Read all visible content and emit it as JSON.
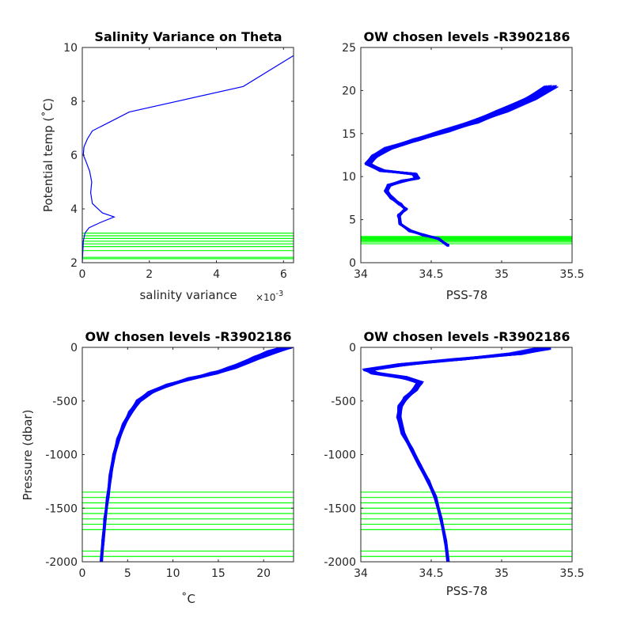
{
  "colors": {
    "profile": "#0000ff",
    "level": "#00ff00",
    "axis": "#262626"
  },
  "chart_data": [
    {
      "id": "p1",
      "type": "line",
      "title": "Salinity Variance on Theta",
      "xlabel": "salinity variance",
      "x_exponent": "×10",
      "x_exponent_power": "-3",
      "ylabel": "Potential temp (˚C)",
      "xlim": [
        0,
        6.3
      ],
      "ylim": [
        2,
        10
      ],
      "xticks": [
        0,
        2,
        4,
        6
      ],
      "yticks": [
        2,
        4,
        6,
        8,
        10
      ],
      "series": [
        {
          "x": [
            0.0,
            0.03,
            0.08,
            0.2,
            0.55,
            0.95,
            0.6,
            0.3,
            0.25,
            0.28,
            0.22,
            0.1,
            0.03,
            0.05,
            0.15,
            0.3,
            1.4,
            4.8,
            6.3
          ],
          "y": [
            2.0,
            2.8,
            3.1,
            3.3,
            3.5,
            3.7,
            3.85,
            4.2,
            4.6,
            5.0,
            5.4,
            5.8,
            6.0,
            6.3,
            6.6,
            6.9,
            7.6,
            8.55,
            9.7
          ]
        }
      ],
      "levels": [
        2.15,
        2.2,
        2.45,
        2.6,
        2.7,
        2.8,
        2.9,
        3.0,
        3.1
      ]
    },
    {
      "id": "p2",
      "type": "line",
      "title": "OW chosen levels -R3902186",
      "xlabel": "PSS-78",
      "ylabel": "",
      "xlim": [
        34,
        35.5
      ],
      "ylim": [
        0,
        25
      ],
      "xticks": [
        34,
        34.5,
        35,
        35.5
      ],
      "xtick_labels": [
        "34",
        "34.5",
        "35",
        "35.5"
      ],
      "yticks": [
        0,
        5,
        10,
        15,
        20,
        25
      ],
      "profile": {
        "x": [
          34.62,
          34.55,
          34.45,
          34.35,
          34.28,
          34.27,
          34.32,
          34.28,
          34.22,
          34.18,
          34.2,
          34.3,
          34.4,
          34.38,
          34.15,
          34.05,
          34.1,
          34.2,
          34.4,
          34.6,
          34.8,
          35.0,
          35.2,
          35.35
        ],
        "y": [
          2.0,
          2.8,
          3.2,
          3.7,
          4.5,
          5.5,
          6.2,
          6.8,
          7.5,
          8.3,
          9.0,
          9.5,
          9.8,
          10.3,
          10.7,
          11.5,
          12.4,
          13.3,
          14.3,
          15.3,
          16.3,
          17.6,
          19.0,
          20.5
        ]
      },
      "profile_count": 90,
      "levels": [
        2.2,
        2.4,
        2.55,
        2.65,
        2.75,
        2.85,
        2.95,
        3.05
      ]
    },
    {
      "id": "p3",
      "type": "line",
      "title": "OW chosen levels -R3902186",
      "xlabel": "˚C",
      "ylabel": "Pressure (dbar)",
      "xlim": [
        0,
        23.3
      ],
      "ylim": [
        -2000,
        0
      ],
      "xticks": [
        0,
        5,
        10,
        15,
        20
      ],
      "yticks": [
        -2000,
        -1500,
        -1000,
        -500,
        0
      ],
      "profile": {
        "x": [
          2.1,
          2.3,
          2.5,
          2.8,
          3.1,
          3.5,
          4.0,
          4.6,
          5.3,
          6.2,
          7.5,
          9.5,
          12.0,
          14.5,
          16.5,
          18.0,
          19.5,
          21.0,
          22.5
        ],
        "y": [
          -2000,
          -1800,
          -1600,
          -1400,
          -1200,
          -1000,
          -850,
          -720,
          -600,
          -500,
          -420,
          -350,
          -290,
          -240,
          -190,
          -140,
          -90,
          -40,
          0
        ]
      },
      "profile_count": 60,
      "levels": [
        -1350,
        -1400,
        -1450,
        -1500,
        -1550,
        -1600,
        -1650,
        -1700,
        -1900,
        -1950
      ]
    },
    {
      "id": "p4",
      "type": "line",
      "title": "OW chosen levels -R3902186",
      "xlabel": "PSS-78",
      "ylabel": "",
      "xlim": [
        34,
        35.5
      ],
      "ylim": [
        -2000,
        0
      ],
      "xticks": [
        34,
        34.5,
        35,
        35.5
      ],
      "xtick_labels": [
        "34",
        "34.5",
        "35",
        "35.5"
      ],
      "yticks": [
        -2000,
        -1500,
        -1000,
        -500,
        0
      ],
      "profile": {
        "x": [
          34.62,
          34.6,
          34.57,
          34.53,
          34.48,
          34.42,
          34.36,
          34.3,
          34.27,
          34.28,
          34.32,
          34.38,
          34.42,
          34.3,
          34.1,
          34.05,
          34.3,
          34.7,
          35.1,
          35.3
        ],
        "y": [
          -2000,
          -1800,
          -1600,
          -1400,
          -1250,
          -1100,
          -950,
          -800,
          -650,
          -550,
          -470,
          -400,
          -330,
          -280,
          -240,
          -210,
          -160,
          -110,
          -60,
          -10
        ]
      },
      "profile_count": 70,
      "levels": [
        -1350,
        -1400,
        -1450,
        -1500,
        -1550,
        -1600,
        -1650,
        -1700,
        -1900,
        -1950
      ]
    }
  ]
}
